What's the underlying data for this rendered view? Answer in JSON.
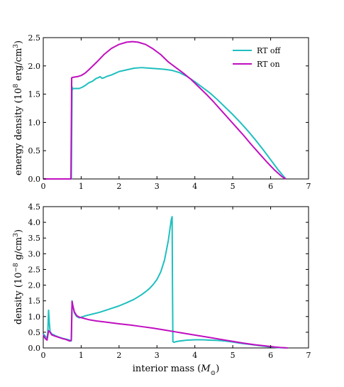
{
  "chart_data": [
    {
      "type": "line",
      "xlabel": "",
      "ylabel_main": "energy density (10",
      "ylabel_sup": "8",
      "ylabel_unit": " erg/cm",
      "ylabel_unit_sup": "3",
      "ylabel_close": ")",
      "xlim": [
        0,
        7
      ],
      "ylim": [
        0,
        2.5
      ],
      "xticks": [
        "0",
        "1",
        "2",
        "3",
        "4",
        "5",
        "6",
        "7"
      ],
      "yticks": [
        "0.0",
        "0.5",
        "1.0",
        "1.5",
        "2.0",
        "2.5"
      ],
      "legend": "top-right",
      "grid": false,
      "series": [
        {
          "name": "RT off",
          "color": "#1fbfbf",
          "x": [
            0,
            0.74,
            0.76,
            0.77,
            0.78,
            0.85,
            0.95,
            1.05,
            1.12,
            1.2,
            1.3,
            1.4,
            1.45,
            1.5,
            1.55,
            1.6,
            1.7,
            1.8,
            1.9,
            2.0,
            2.2,
            2.4,
            2.6,
            2.8,
            3.0,
            3.2,
            3.4,
            3.6,
            3.8,
            4.0,
            4.2,
            4.4,
            4.6,
            4.8,
            5.0,
            5.2,
            5.4,
            5.6,
            5.8,
            6.0,
            6.2,
            6.4
          ],
          "y": [
            0,
            0,
            1.63,
            1.58,
            1.6,
            1.6,
            1.6,
            1.63,
            1.66,
            1.7,
            1.73,
            1.78,
            1.79,
            1.81,
            1.78,
            1.79,
            1.82,
            1.84,
            1.87,
            1.9,
            1.93,
            1.96,
            1.97,
            1.96,
            1.95,
            1.94,
            1.92,
            1.88,
            1.81,
            1.72,
            1.62,
            1.52,
            1.4,
            1.27,
            1.14,
            1.0,
            0.85,
            0.69,
            0.52,
            0.34,
            0.16,
            0.0
          ]
        },
        {
          "name": "RT on",
          "color": "#c00fc0",
          "x": [
            0,
            0.73,
            0.75,
            0.8,
            0.9,
            1.0,
            1.1,
            1.2,
            1.4,
            1.6,
            1.8,
            2.0,
            2.2,
            2.35,
            2.5,
            2.7,
            2.9,
            3.1,
            3.3,
            3.5,
            3.7,
            3.9,
            4.1,
            4.3,
            4.5,
            4.7,
            4.9,
            5.1,
            5.3,
            5.5,
            5.7,
            5.9,
            6.1,
            6.3,
            6.4
          ],
          "y": [
            0,
            0,
            1.79,
            1.8,
            1.81,
            1.83,
            1.87,
            1.93,
            2.06,
            2.2,
            2.31,
            2.38,
            2.42,
            2.43,
            2.42,
            2.38,
            2.3,
            2.2,
            2.07,
            1.97,
            1.87,
            1.76,
            1.63,
            1.5,
            1.36,
            1.21,
            1.06,
            0.91,
            0.76,
            0.6,
            0.45,
            0.3,
            0.16,
            0.04,
            0.0
          ]
        }
      ]
    },
    {
      "type": "line",
      "xlabel_main": "interior mass (",
      "xlabel_var": "M",
      "xlabel_sub": "⊙",
      "xlabel_close": ")",
      "ylabel_main": "density (10",
      "ylabel_sup": "−8",
      "ylabel_unit": " g/cm",
      "ylabel_unit_sup": "3",
      "ylabel_close": ")",
      "xlim": [
        0,
        7
      ],
      "ylim": [
        0,
        4.5
      ],
      "xticks": [
        "0",
        "1",
        "2",
        "3",
        "4",
        "5",
        "6",
        "7"
      ],
      "yticks": [
        "0.0",
        "0.5",
        "1.0",
        "1.5",
        "2.0",
        "2.5",
        "3.0",
        "3.5",
        "4.0",
        "4.5"
      ],
      "grid": false,
      "series": [
        {
          "name": "RT off",
          "color": "#1fbfbf",
          "x": [
            0,
            0.05,
            0.1,
            0.12,
            0.14,
            0.16,
            0.18,
            0.22,
            0.3,
            0.4,
            0.5,
            0.6,
            0.7,
            0.74,
            0.76,
            0.78,
            0.82,
            0.88,
            0.95,
            1.0,
            1.1,
            1.2,
            1.3,
            1.4,
            1.5,
            1.6,
            1.8,
            2.0,
            2.2,
            2.4,
            2.6,
            2.7,
            2.8,
            2.9,
            3.0,
            3.1,
            3.2,
            3.3,
            3.35,
            3.38,
            3.4,
            3.41,
            3.42,
            3.45,
            3.5,
            3.6,
            3.8,
            4.0,
            4.2,
            4.4,
            4.6,
            4.8,
            5.0,
            5.2,
            5.4,
            5.6,
            5.8,
            6.0,
            6.2,
            6.4
          ],
          "y": [
            0.45,
            0.38,
            0.3,
            0.5,
            1.2,
            0.8,
            0.52,
            0.45,
            0.4,
            0.35,
            0.31,
            0.28,
            0.25,
            0.22,
            1.5,
            1.35,
            1.12,
            1.0,
            0.96,
            0.98,
            1.02,
            1.05,
            1.08,
            1.11,
            1.14,
            1.18,
            1.26,
            1.34,
            1.44,
            1.55,
            1.7,
            1.79,
            1.89,
            2.02,
            2.18,
            2.42,
            2.8,
            3.42,
            3.85,
            4.1,
            4.18,
            2.0,
            0.2,
            0.18,
            0.2,
            0.22,
            0.25,
            0.26,
            0.26,
            0.25,
            0.24,
            0.22,
            0.19,
            0.15,
            0.12,
            0.09,
            0.06,
            0.03,
            0.01,
            0.0
          ]
        },
        {
          "name": "RT on",
          "color": "#c00fc0",
          "x": [
            0,
            0.05,
            0.1,
            0.14,
            0.18,
            0.22,
            0.3,
            0.4,
            0.5,
            0.6,
            0.7,
            0.74,
            0.76,
            0.78,
            0.82,
            0.88,
            0.95,
            1.05,
            1.2,
            1.4,
            1.6,
            1.8,
            2.0,
            2.3,
            2.6,
            2.9,
            3.2,
            3.5,
            3.8,
            4.1,
            4.4,
            4.7,
            5.0,
            5.3,
            5.6,
            5.9,
            6.1,
            6.3,
            6.45
          ],
          "y": [
            0.42,
            0.3,
            0.25,
            0.55,
            0.5,
            0.42,
            0.38,
            0.34,
            0.3,
            0.27,
            0.22,
            0.25,
            1.48,
            1.35,
            1.15,
            1.03,
            0.98,
            0.95,
            0.9,
            0.86,
            0.83,
            0.8,
            0.77,
            0.73,
            0.68,
            0.63,
            0.57,
            0.51,
            0.45,
            0.39,
            0.33,
            0.27,
            0.21,
            0.15,
            0.1,
            0.06,
            0.03,
            0.01,
            0.0
          ]
        }
      ]
    }
  ]
}
